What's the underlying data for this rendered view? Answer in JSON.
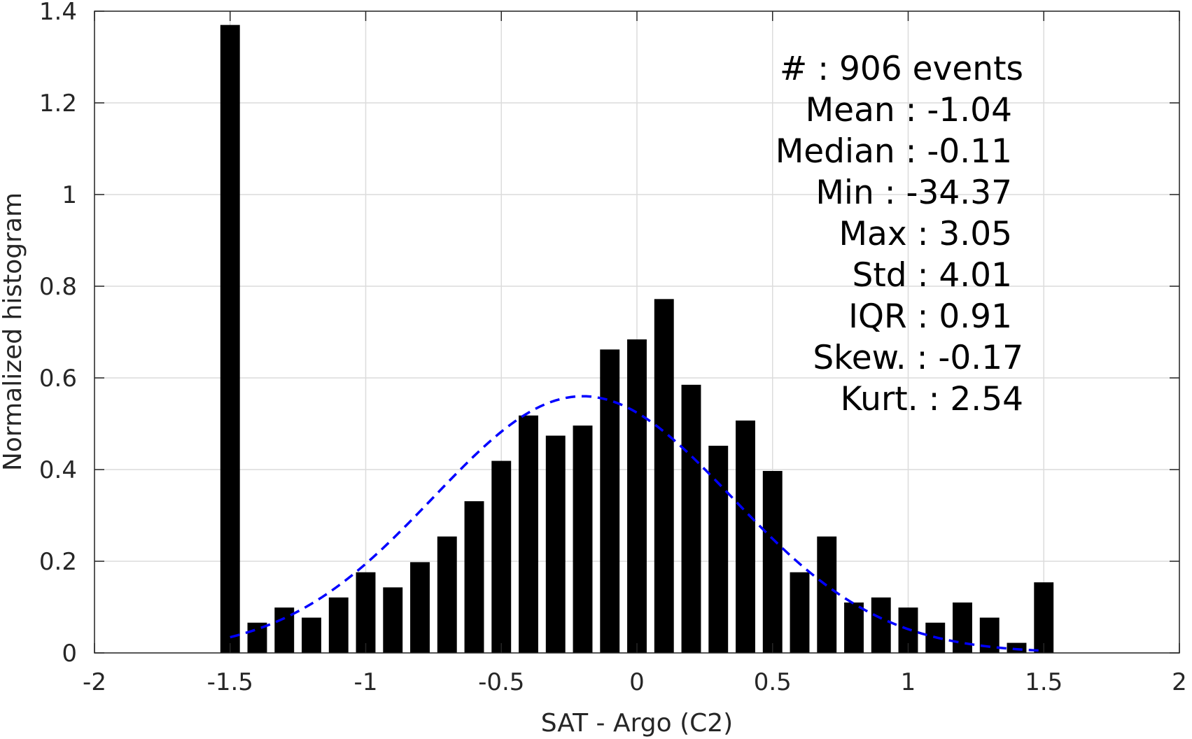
{
  "chart_data": {
    "type": "bar",
    "title": "",
    "xlabel": "SAT - Argo (C2)",
    "ylabel": "Normalized histogram",
    "xlim": [
      -2,
      2
    ],
    "ylim": [
      0,
      1.4
    ],
    "x_ticks": [
      "-2",
      "-1.5",
      "-1",
      "-0.5",
      "0",
      "0.5",
      "1",
      "1.5",
      "2"
    ],
    "y_ticks": [
      "0",
      "0.2",
      "0.4",
      "0.6",
      "0.8",
      "1",
      "1.2",
      "1.4"
    ],
    "grid": true,
    "bars": {
      "x": [
        -1.5,
        -1.4,
        -1.3,
        -1.2,
        -1.1,
        -1.0,
        -0.9,
        -0.8,
        -0.7,
        -0.6,
        -0.5,
        -0.4,
        -0.3,
        -0.2,
        -0.1,
        0.0,
        0.1,
        0.2,
        0.3,
        0.4,
        0.5,
        0.6,
        0.7,
        0.8,
        0.9,
        1.0,
        1.1,
        1.2,
        1.3,
        1.4,
        1.5
      ],
      "values": [
        1.37,
        0.066,
        0.099,
        0.077,
        0.121,
        0.176,
        0.143,
        0.198,
        0.254,
        0.331,
        0.419,
        0.518,
        0.474,
        0.496,
        0.662,
        0.684,
        0.772,
        0.585,
        0.452,
        0.507,
        0.397,
        0.176,
        0.254,
        0.11,
        0.121,
        0.099,
        0.066,
        0.11,
        0.077,
        0.022,
        0.154
      ],
      "color": "#000000"
    },
    "fit_curve": {
      "style": "dashed",
      "color": "#0000ff",
      "mean": -0.2,
      "peak": 0.56,
      "sigma": 0.55,
      "x_range": [
        -1.5,
        1.5
      ]
    },
    "annotation": [
      {
        "text": "#  : 906 events",
        "anchor": "end"
      },
      {
        "text": "Mean : -1.04",
        "anchor": "end"
      },
      {
        "text": "Median : -0.11",
        "anchor": "end"
      },
      {
        "text": "Min : -34.37",
        "anchor": "end"
      },
      {
        "text": "Max : 3.05",
        "anchor": "end"
      },
      {
        "text": "Std : 4.01",
        "anchor": "end"
      },
      {
        "text": "IQR : 0.91",
        "anchor": "end"
      },
      {
        "text": "Skew. : -0.17",
        "anchor": "end"
      },
      {
        "text": "Kurt. : 2.54",
        "anchor": "end"
      }
    ]
  }
}
